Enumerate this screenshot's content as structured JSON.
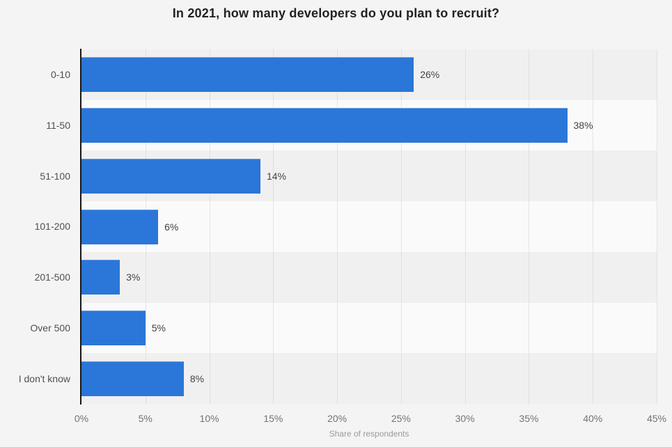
{
  "title": "In 2021, how many developers do you plan to recruit?",
  "chart_data": {
    "type": "bar",
    "orientation": "horizontal",
    "title": "In 2021, how many developers do you plan to recruit?",
    "categories": [
      "0-10",
      "11-50",
      "51-100",
      "101-200",
      "201-500",
      "Over 500",
      "I don't know"
    ],
    "values": [
      26,
      38,
      14,
      6,
      3,
      5,
      8
    ],
    "value_labels": [
      "26%",
      "38%",
      "14%",
      "6%",
      "3%",
      "5%",
      "8%"
    ],
    "xlabel": "Share of respondents",
    "ylabel": "",
    "xlim": [
      0,
      45
    ],
    "x_tick_step": 5,
    "x_tick_labels": [
      "0%",
      "5%",
      "10%",
      "15%",
      "20%",
      "25%",
      "30%",
      "35%",
      "40%",
      "45%"
    ],
    "grid": "dotted-vertical",
    "legend": "none",
    "colors": {
      "bar": "#2b76d9",
      "background": "#f4f4f4",
      "band_a": "#f0f0f0",
      "band_b": "#fafafa",
      "gridline": "#cfcfcf",
      "axis_line": "#161616",
      "title_text": "#222222",
      "category_text": "#4f4f4f",
      "value_text": "#3f3f3f",
      "tick_text": "#737373",
      "axis_label_text": "#9a9a9a"
    }
  }
}
